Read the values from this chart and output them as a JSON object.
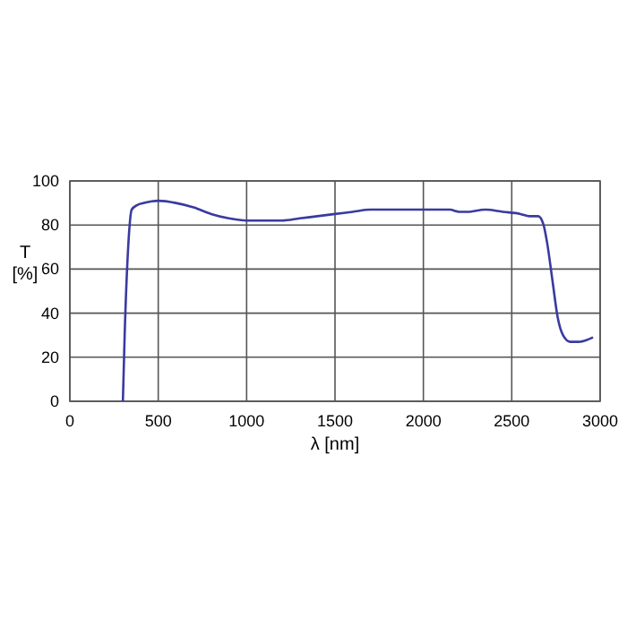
{
  "chart_data": {
    "type": "line",
    "xlabel": "λ [nm]",
    "ylabel": "T [%]",
    "xlim": [
      0,
      3000
    ],
    "ylim": [
      0,
      100
    ],
    "xticks": [
      0,
      500,
      1000,
      1500,
      2000,
      2500,
      3000
    ],
    "yticks": [
      0,
      20,
      40,
      60,
      80,
      100
    ],
    "grid": true,
    "series": [
      {
        "color": "#3a3aa0",
        "x": [
          300,
          310,
          330,
          350,
          380,
          420,
          500,
          600,
          700,
          800,
          900,
          1000,
          1100,
          1200,
          1300,
          1400,
          1500,
          1600,
          1700,
          1800,
          1900,
          2000,
          2100,
          2150,
          2200,
          2250,
          2350,
          2450,
          2550,
          2600,
          2650,
          2680,
          2700,
          2730,
          2760,
          2790,
          2830,
          2880,
          2930,
          2960
        ],
        "values": [
          0,
          30,
          70,
          87,
          89,
          90,
          91,
          90,
          88,
          85,
          83,
          82,
          82,
          82,
          83,
          84,
          85,
          86,
          87,
          87,
          87,
          87,
          87,
          87,
          86,
          86,
          87,
          86,
          85,
          84,
          84,
          80,
          72,
          55,
          38,
          30,
          27,
          27,
          28,
          29
        ]
      }
    ]
  }
}
